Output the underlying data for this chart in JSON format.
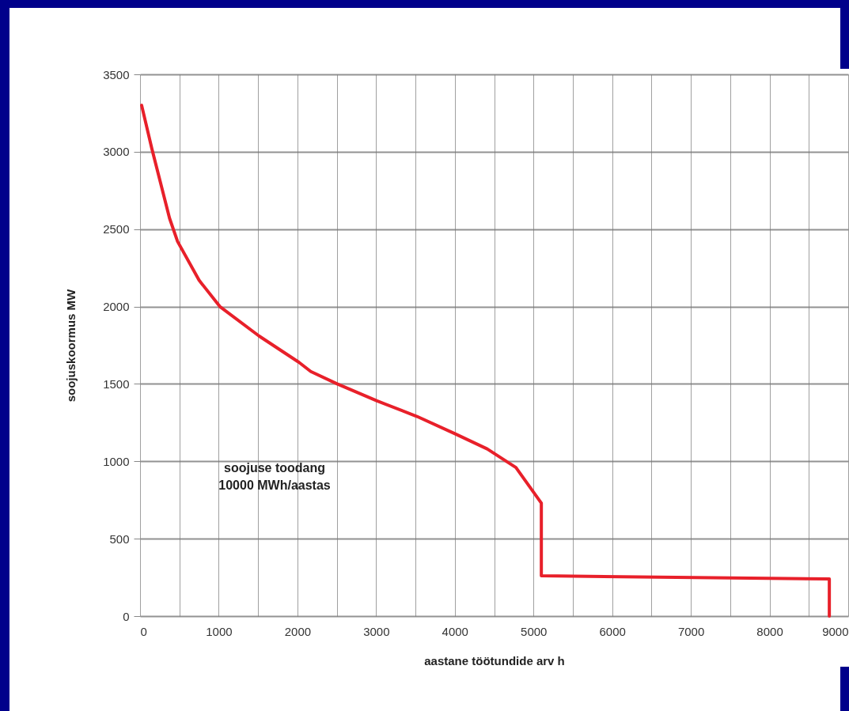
{
  "chart_data": {
    "type": "line",
    "xlabel": "aastane töötundide arv h",
    "ylabel": "soojuskoormus MW",
    "x": [
      20,
      150,
      375,
      477,
      750,
      1014,
      1511,
      2018,
      2170,
      2505,
      3012,
      3519,
      3996,
      4412,
      4777,
      5100,
      5100,
      8760,
      8760
    ],
    "series": [
      {
        "color": "#e8202a",
        "values": [
          3300,
          3020,
          2570,
          2420,
          2170,
          2000,
          1810,
          1640,
          1580,
          1500,
          1390,
          1290,
          1180,
          1080,
          960,
          730,
          260,
          240,
          0
        ]
      }
    ],
    "xlim": [
      0,
      9000
    ],
    "ylim": [
      0,
      3500
    ],
    "xticks": [
      0,
      {
        "value": 500,
        "label": null
      },
      1000,
      {
        "value": 1500,
        "label": null
      },
      2000,
      {
        "value": 2500,
        "label": null
      },
      3000,
      {
        "value": 3500,
        "label": null
      },
      4000,
      {
        "value": 4500,
        "label": null
      },
      5000,
      {
        "value": 5500,
        "label": null
      },
      6000,
      {
        "value": 6500,
        "label": null
      },
      7000,
      {
        "value": 7500,
        "label": null
      },
      8000,
      {
        "value": 8500,
        "label": null
      },
      9000
    ],
    "yticks": [
      0,
      500,
      1000,
      1500,
      2000,
      2500,
      3000,
      3500
    ],
    "grid": true,
    "marker": "none",
    "line_style": "solid",
    "annotations": [
      "soojuse toodang\n10000 MWh/aastas"
    ]
  }
}
